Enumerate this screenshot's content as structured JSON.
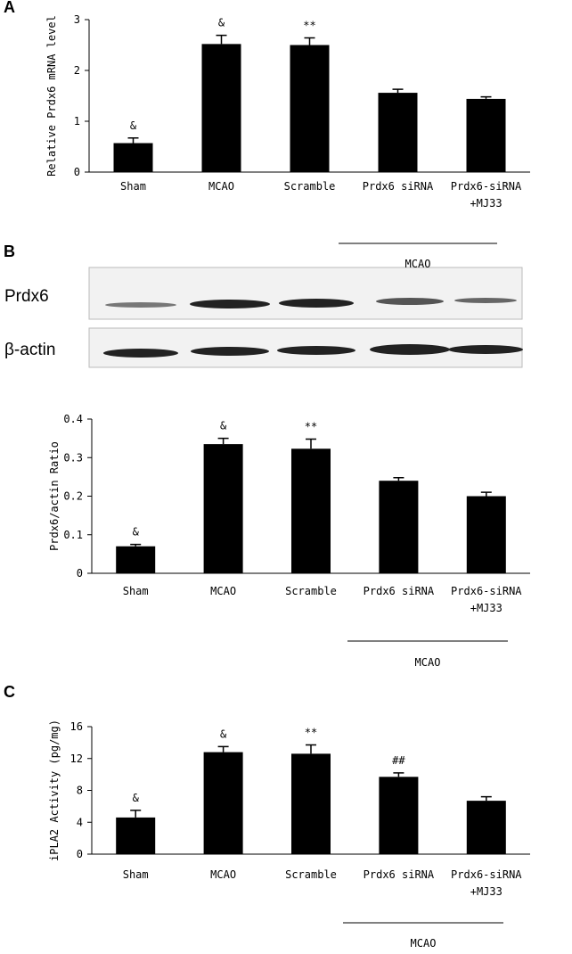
{
  "chart_data": [
    {
      "type": "bar",
      "panel_label": "A",
      "y_label": "Relative Prdx6 mRNA level",
      "categories": [
        "Sham",
        "MCAO",
        "Scramble",
        "Prdx6 siRNA",
        "Prdx6-siRNA\n+MJ33"
      ],
      "values": [
        0.57,
        2.52,
        2.5,
        1.56,
        1.44
      ],
      "errors": [
        0.1,
        0.17,
        0.14,
        0.07,
        0.04
      ],
      "annotations": [
        "&",
        "&",
        "**"
      ],
      "color": "#000000",
      "ylim": [
        0,
        3
      ],
      "yticks": [
        0,
        1,
        2,
        3
      ],
      "group_label": "MCAO"
    },
    {
      "type": "bar",
      "panel_label": "B",
      "y_label": "Prdx6/actin Ratio",
      "categories": [
        "Sham",
        "MCAO",
        "Scramble",
        "Prdx6 siRNA",
        "Prdx6-siRNA\n+MJ33"
      ],
      "values": [
        0.07,
        0.335,
        0.323,
        0.24,
        0.2
      ],
      "errors": [
        0.005,
        0.015,
        0.025,
        0.008,
        0.01
      ],
      "annotations": [
        "&",
        "&",
        "**"
      ],
      "color": "#000000",
      "ylim": [
        0,
        0.4
      ],
      "yticks": [
        0,
        0.1,
        0.2,
        0.3,
        0.4
      ],
      "group_label": "MCAO"
    },
    {
      "type": "bar",
      "panel_label": "C",
      "y_label": "iPLA2 Activity (pg/mg)",
      "categories": [
        "Sham",
        "MCAO",
        "Scramble",
        "Prdx6 siRNA",
        "Prdx6-siRNA\n+MJ33"
      ],
      "values": [
        4.6,
        12.8,
        12.6,
        9.7,
        6.7
      ],
      "errors": [
        0.9,
        0.7,
        1.1,
        0.5,
        0.5
      ],
      "annotations": [
        "&",
        "&",
        "**",
        "##"
      ],
      "color": "#000000",
      "ylim": [
        0,
        16
      ],
      "yticks": [
        0,
        4,
        8,
        12,
        16
      ],
      "group_label": "MCAO"
    }
  ],
  "blot": {
    "labels": [
      "Prdx6",
      "β-actin"
    ]
  }
}
